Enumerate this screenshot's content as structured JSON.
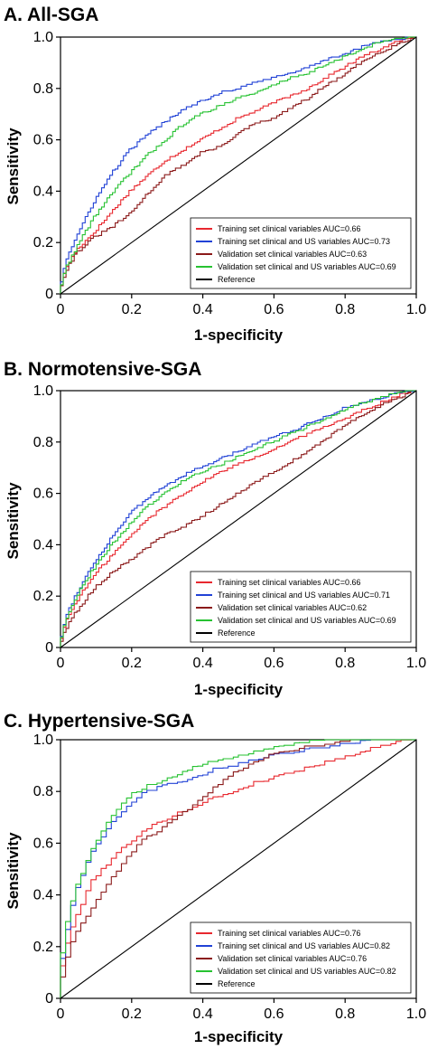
{
  "chart_data": [
    {
      "type": "line",
      "title": "A. All-SGA",
      "xlabel": "1-specificity",
      "ylabel": "Sensitivity",
      "xlim": [
        0,
        1
      ],
      "ylim": [
        0,
        1
      ],
      "xticks": [
        "0",
        "0.2",
        "0.4",
        "0.6",
        "0.8",
        "1.0"
      ],
      "yticks": [
        "0",
        "0.2",
        "0.4",
        "0.6",
        "0.8",
        "1.0"
      ],
      "legend_position": "bottom-right",
      "series": [
        {
          "name": "Training set clinical variables AUC=0.66",
          "color": "#e8282f",
          "x": [
            0,
            0.02,
            0.05,
            0.1,
            0.15,
            0.2,
            0.25,
            0.3,
            0.35,
            0.4,
            0.45,
            0.5,
            0.55,
            0.6,
            0.65,
            0.7,
            0.75,
            0.8,
            0.85,
            0.9,
            0.95,
            1.0
          ],
          "y": [
            0,
            0.1,
            0.17,
            0.24,
            0.32,
            0.4,
            0.46,
            0.52,
            0.56,
            0.6,
            0.64,
            0.68,
            0.71,
            0.74,
            0.77,
            0.8,
            0.84,
            0.88,
            0.92,
            0.95,
            0.98,
            1.0
          ]
        },
        {
          "name": "Training set clinical and US variables AUC=0.73",
          "color": "#2142d6",
          "x": [
            0,
            0.02,
            0.05,
            0.1,
            0.15,
            0.2,
            0.25,
            0.3,
            0.35,
            0.4,
            0.45,
            0.5,
            0.55,
            0.6,
            0.65,
            0.7,
            0.75,
            0.8,
            0.85,
            0.9,
            0.95,
            1.0
          ],
          "y": [
            0,
            0.13,
            0.22,
            0.36,
            0.47,
            0.56,
            0.62,
            0.67,
            0.72,
            0.75,
            0.78,
            0.8,
            0.82,
            0.84,
            0.86,
            0.88,
            0.91,
            0.93,
            0.96,
            0.98,
            0.99,
            1.0
          ]
        },
        {
          "name": "Validation set clinical variables AUC=0.63",
          "color": "#8b1a1a",
          "x": [
            0,
            0.02,
            0.05,
            0.1,
            0.15,
            0.2,
            0.25,
            0.3,
            0.35,
            0.4,
            0.45,
            0.5,
            0.55,
            0.6,
            0.65,
            0.7,
            0.75,
            0.8,
            0.85,
            0.9,
            0.95,
            1.0
          ],
          "y": [
            0,
            0.09,
            0.16,
            0.22,
            0.26,
            0.31,
            0.39,
            0.46,
            0.5,
            0.55,
            0.57,
            0.62,
            0.66,
            0.68,
            0.72,
            0.76,
            0.81,
            0.85,
            0.9,
            0.94,
            0.97,
            1.0
          ]
        },
        {
          "name": "Validation set clinical and US variables AUC=0.69",
          "color": "#27c232",
          "x": [
            0,
            0.02,
            0.05,
            0.1,
            0.15,
            0.2,
            0.25,
            0.3,
            0.35,
            0.4,
            0.45,
            0.5,
            0.55,
            0.6,
            0.65,
            0.7,
            0.75,
            0.8,
            0.85,
            0.9,
            0.95,
            1.0
          ],
          "y": [
            0,
            0.1,
            0.18,
            0.3,
            0.39,
            0.47,
            0.54,
            0.6,
            0.66,
            0.7,
            0.73,
            0.76,
            0.78,
            0.81,
            0.84,
            0.86,
            0.89,
            0.92,
            0.95,
            0.98,
            0.99,
            1.0
          ]
        },
        {
          "name": "Reference",
          "color": "#000000",
          "x": [
            0,
            1
          ],
          "y": [
            0,
            1
          ]
        }
      ]
    },
    {
      "type": "line",
      "title": "B. Normotensive-SGA",
      "xlabel": "1-specificity",
      "ylabel": "Sensitivity",
      "xlim": [
        0,
        1
      ],
      "ylim": [
        0,
        1
      ],
      "xticks": [
        "0",
        "0.2",
        "0.4",
        "0.6",
        "0.8",
        "1.0"
      ],
      "yticks": [
        "0",
        "0.2",
        "0.4",
        "0.6",
        "0.8",
        "1.0"
      ],
      "legend_position": "bottom-right",
      "series": [
        {
          "name": "Training set clinical variables AUC=0.66",
          "color": "#e8282f",
          "x": [
            0,
            0.02,
            0.05,
            0.1,
            0.15,
            0.2,
            0.25,
            0.3,
            0.35,
            0.4,
            0.45,
            0.5,
            0.55,
            0.6,
            0.65,
            0.7,
            0.75,
            0.8,
            0.85,
            0.9,
            0.95,
            1.0
          ],
          "y": [
            0,
            0.1,
            0.18,
            0.28,
            0.36,
            0.43,
            0.5,
            0.55,
            0.6,
            0.64,
            0.68,
            0.71,
            0.74,
            0.77,
            0.8,
            0.83,
            0.86,
            0.89,
            0.92,
            0.95,
            0.98,
            1.0
          ]
        },
        {
          "name": "Training set clinical and US variables AUC=0.71",
          "color": "#2142d6",
          "x": [
            0,
            0.02,
            0.05,
            0.1,
            0.15,
            0.2,
            0.25,
            0.3,
            0.35,
            0.4,
            0.45,
            0.5,
            0.55,
            0.6,
            0.65,
            0.7,
            0.75,
            0.8,
            0.85,
            0.9,
            0.95,
            1.0
          ],
          "y": [
            0,
            0.12,
            0.21,
            0.33,
            0.43,
            0.52,
            0.58,
            0.63,
            0.67,
            0.7,
            0.73,
            0.76,
            0.79,
            0.82,
            0.84,
            0.87,
            0.9,
            0.93,
            0.95,
            0.97,
            0.99,
            1.0
          ]
        },
        {
          "name": "Validation set clinical variables AUC=0.62",
          "color": "#8b1a1a",
          "x": [
            0,
            0.02,
            0.05,
            0.1,
            0.15,
            0.2,
            0.25,
            0.3,
            0.35,
            0.4,
            0.45,
            0.5,
            0.55,
            0.6,
            0.65,
            0.7,
            0.75,
            0.8,
            0.85,
            0.9,
            0.95,
            1.0
          ],
          "y": [
            0,
            0.07,
            0.14,
            0.23,
            0.29,
            0.34,
            0.39,
            0.44,
            0.47,
            0.51,
            0.55,
            0.6,
            0.64,
            0.68,
            0.72,
            0.76,
            0.81,
            0.86,
            0.9,
            0.94,
            0.97,
            1.0
          ]
        },
        {
          "name": "Validation set clinical and US variables AUC=0.69",
          "color": "#27c232",
          "x": [
            0,
            0.02,
            0.05,
            0.1,
            0.15,
            0.2,
            0.25,
            0.3,
            0.35,
            0.4,
            0.45,
            0.5,
            0.55,
            0.6,
            0.65,
            0.7,
            0.75,
            0.8,
            0.85,
            0.9,
            0.95,
            1.0
          ],
          "y": [
            0,
            0.11,
            0.2,
            0.31,
            0.4,
            0.48,
            0.55,
            0.6,
            0.65,
            0.68,
            0.71,
            0.74,
            0.77,
            0.8,
            0.83,
            0.86,
            0.89,
            0.92,
            0.95,
            0.97,
            0.99,
            1.0
          ]
        },
        {
          "name": "Reference",
          "color": "#000000",
          "x": [
            0,
            1
          ],
          "y": [
            0,
            1
          ]
        }
      ]
    },
    {
      "type": "line",
      "title": "C. Hypertensive-SGA",
      "xlabel": "1-specificity",
      "ylabel": "Sensitivity",
      "xlim": [
        0,
        1
      ],
      "ylim": [
        0,
        1
      ],
      "xticks": [
        "0",
        "0.2",
        "0.4",
        "0.6",
        "0.8",
        "1.0"
      ],
      "yticks": [
        "0",
        "0.2",
        "0.4",
        "0.6",
        "0.8",
        "1.0"
      ],
      "legend_position": "bottom-right",
      "series": [
        {
          "name": "Training set clinical variables AUC=0.76",
          "color": "#e8282f",
          "x": [
            0,
            0.02,
            0.05,
            0.1,
            0.15,
            0.2,
            0.25,
            0.3,
            0.35,
            0.4,
            0.45,
            0.5,
            0.55,
            0.6,
            0.65,
            0.7,
            0.75,
            0.8,
            0.85,
            0.9,
            0.95,
            1.0
          ],
          "y": [
            0,
            0.18,
            0.3,
            0.46,
            0.53,
            0.6,
            0.65,
            0.69,
            0.72,
            0.75,
            0.78,
            0.8,
            0.83,
            0.85,
            0.87,
            0.89,
            0.91,
            0.93,
            0.95,
            0.97,
            0.99,
            1.0
          ]
        },
        {
          "name": "Training set clinical and US variables AUC=0.82",
          "color": "#2142d6",
          "x": [
            0,
            0.02,
            0.05,
            0.1,
            0.15,
            0.2,
            0.25,
            0.3,
            0.35,
            0.4,
            0.45,
            0.5,
            0.55,
            0.6,
            0.65,
            0.7,
            0.75,
            0.8,
            0.85,
            0.9,
            0.95,
            1.0
          ],
          "y": [
            0,
            0.22,
            0.4,
            0.57,
            0.67,
            0.74,
            0.8,
            0.82,
            0.84,
            0.86,
            0.89,
            0.9,
            0.92,
            0.94,
            0.95,
            0.96,
            0.97,
            0.98,
            0.99,
            1.0,
            1.0,
            1.0
          ]
        },
        {
          "name": "Validation set clinical variables AUC=0.76",
          "color": "#8b1a1a",
          "x": [
            0,
            0.02,
            0.05,
            0.1,
            0.15,
            0.2,
            0.25,
            0.3,
            0.35,
            0.4,
            0.45,
            0.5,
            0.55,
            0.6,
            0.65,
            0.7,
            0.75,
            0.8,
            0.85,
            0.9,
            0.95,
            1.0
          ],
          "y": [
            0,
            0.12,
            0.25,
            0.35,
            0.45,
            0.55,
            0.62,
            0.66,
            0.71,
            0.76,
            0.82,
            0.87,
            0.91,
            0.94,
            0.96,
            0.97,
            0.98,
            0.99,
            1.0,
            1.0,
            1.0,
            1.0
          ]
        },
        {
          "name": "Validation set clinical and US variables AUC=0.82",
          "color": "#27c232",
          "x": [
            0,
            0.02,
            0.05,
            0.1,
            0.15,
            0.2,
            0.25,
            0.3,
            0.35,
            0.4,
            0.45,
            0.5,
            0.55,
            0.6,
            0.65,
            0.7,
            0.75,
            0.8,
            0.85,
            0.9,
            0.95,
            1.0
          ],
          "y": [
            0,
            0.25,
            0.42,
            0.58,
            0.7,
            0.78,
            0.82,
            0.84,
            0.87,
            0.9,
            0.92,
            0.93,
            0.95,
            0.97,
            0.98,
            0.99,
            1.0,
            1.0,
            1.0,
            1.0,
            1.0,
            1.0
          ]
        },
        {
          "name": "Reference",
          "color": "#000000",
          "x": [
            0,
            1
          ],
          "y": [
            0,
            1
          ]
        }
      ]
    }
  ]
}
